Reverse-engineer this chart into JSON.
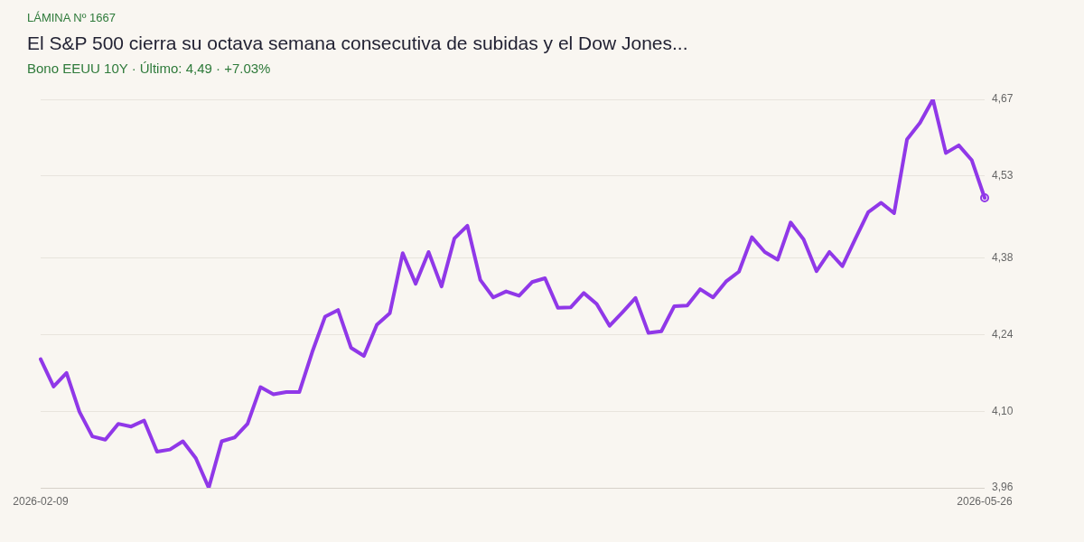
{
  "chart_data": {
    "type": "line",
    "title": "El S&P 500 cierra su octava semana consecutiva de subidas y el Dow Jones...",
    "subtitle": "Bono EEUU 10Y · Último: 4,49 · +7.03%",
    "annotations": [
      "LÁMINA Nº 1667"
    ],
    "categories": [
      "2026-02-09",
      null,
      null,
      null,
      null,
      null,
      null,
      null,
      null,
      null,
      null,
      null,
      null,
      null,
      null,
      null,
      null,
      null,
      null,
      null,
      null,
      null,
      null,
      null,
      null,
      null,
      null,
      null,
      null,
      null,
      null,
      null,
      null,
      null,
      null,
      null,
      null,
      null,
      null,
      null,
      null,
      null,
      null,
      null,
      null,
      null,
      null,
      null,
      null,
      null,
      null,
      null,
      null,
      null,
      null,
      null,
      null,
      null,
      null,
      null,
      null,
      null,
      null,
      null,
      null,
      null,
      null,
      null,
      null,
      null,
      null,
      null,
      null,
      "2026-05-26"
    ],
    "series": [
      {
        "color": "#9038e8",
        "values": [
          4.195,
          4.145,
          4.17,
          4.099,
          4.054,
          4.048,
          4.077,
          4.072,
          4.083,
          4.026,
          4.03,
          4.045,
          4.014,
          3.96,
          4.045,
          4.052,
          4.077,
          4.144,
          4.131,
          4.135,
          4.135,
          4.208,
          4.273,
          4.285,
          4.216,
          4.201,
          4.258,
          4.279,
          4.389,
          4.333,
          4.391,
          4.328,
          4.416,
          4.439,
          4.34,
          4.308,
          4.319,
          4.311,
          4.336,
          4.343,
          4.289,
          4.29,
          4.316,
          4.296,
          4.256,
          4.281,
          4.307,
          4.243,
          4.246,
          4.292,
          4.293,
          4.323,
          4.308,
          4.337,
          4.355,
          4.418,
          4.391,
          4.377,
          4.445,
          4.414,
          4.356,
          4.391,
          4.365,
          4.415,
          4.464,
          4.481,
          4.462,
          4.597,
          4.627,
          4.67,
          4.572,
          4.586,
          4.559,
          4.49
        ]
      }
    ],
    "ylim": [
      3.96,
      4.67
    ],
    "yticks": [
      {
        "value": 3.96,
        "label": "3,96"
      },
      {
        "value": 4.1,
        "label": "4,10"
      },
      {
        "value": 4.24,
        "label": "4,24"
      },
      {
        "value": 4.38,
        "label": "4,38"
      },
      {
        "value": 4.53,
        "label": "4,53"
      },
      {
        "value": 4.67,
        "label": "4,67"
      }
    ],
    "grid": "y",
    "legend": false
  }
}
